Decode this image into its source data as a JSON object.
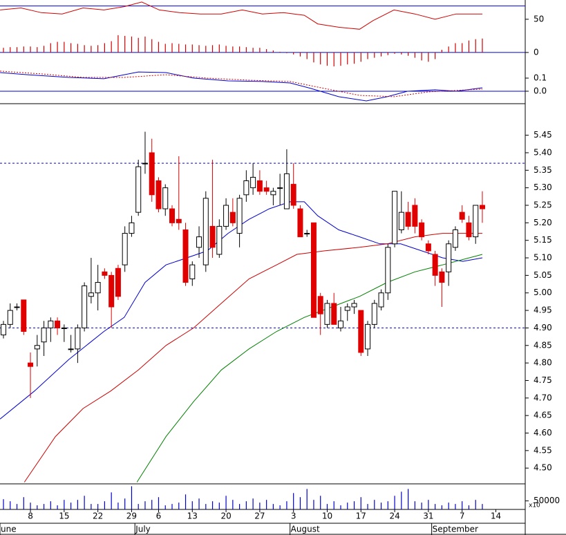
{
  "chart_data": [
    {
      "type": "oscillator",
      "ylim": [
        -23,
        79
      ],
      "yticks": [
        0,
        50
      ],
      "hlines": [
        70,
        0
      ],
      "hline_color": "#0000cc",
      "series": [
        {
          "color": "#d00000",
          "x": [
            -0.5,
            2.6,
            5.6,
            8.7,
            11.8,
            14.9,
            17.9,
            20.5,
            23.1,
            26.1,
            29.2,
            32.3,
            35.4,
            38.4,
            41.5,
            44.6,
            46.6,
            49.7,
            52.8,
            54.8,
            57.9,
            61,
            64,
            67.1,
            71
          ],
          "values": [
            64,
            67,
            60,
            58,
            67,
            64,
            69,
            76,
            64,
            60,
            58,
            58,
            64,
            58,
            60,
            56,
            43,
            38,
            35,
            48,
            64,
            58,
            50,
            58,
            58
          ]
        }
      ],
      "bars": {
        "color": "#d00000",
        "values": [
          7,
          8,
          8,
          9,
          9,
          8,
          10,
          14,
          16,
          16,
          14,
          13,
          11,
          10,
          11,
          14,
          17,
          26,
          25,
          24,
          22,
          24,
          20,
          16,
          13,
          14,
          13,
          12,
          12,
          11,
          10,
          11,
          12,
          10,
          9,
          9,
          8,
          7,
          7,
          5,
          3,
          1,
          -1,
          -3,
          -6,
          -10,
          -15,
          -18,
          -20,
          -21,
          -20,
          -18,
          -17,
          -14,
          -10,
          -8,
          -6,
          -4,
          -2,
          -3,
          -5,
          -8,
          -12,
          -14,
          -10,
          4,
          9,
          14,
          14,
          18,
          20,
          21,
          null,
          null
        ]
      }
    },
    {
      "type": "macd",
      "ylim": [
        -0.095,
        0.179
      ],
      "yticks": [
        {
          "value": 0.1,
          "label": "0.1"
        },
        {
          "value": 0,
          "label": "0.0"
        }
      ],
      "hlines": [
        0
      ],
      "hline_color": "#0000cc",
      "series": [
        {
          "color": "#0000cc",
          "dash": false,
          "x": [
            -0.5,
            3.6,
            9.7,
            14.9,
            20,
            24.1,
            28.2,
            33.3,
            38.4,
            42.5,
            45.6,
            49.7,
            53.8,
            56.9,
            59.9,
            64,
            67.1,
            71
          ],
          "values": [
            0.142,
            0.126,
            0.105,
            0.095,
            0.147,
            0.142,
            0.1,
            0.079,
            0.074,
            0.063,
            0.021,
            -0.042,
            -0.074,
            -0.042,
            0,
            0.011,
            0,
            0.026
          ]
        },
        {
          "color": "#cc0000",
          "dash": true,
          "x": [
            -0.5,
            5.6,
            11.8,
            17.9,
            24.1,
            30.2,
            36.4,
            42.5,
            47.6,
            52.8,
            57.9,
            63,
            71
          ],
          "values": [
            0.153,
            0.132,
            0.105,
            0.105,
            0.126,
            0.1,
            0.084,
            0.074,
            0.021,
            -0.032,
            -0.042,
            -0.005,
            0.016
          ]
        }
      ]
    },
    {
      "type": "candlestick",
      "ylim": [
        4.455,
        5.54
      ],
      "yticks": [
        {
          "value": 4.5,
          "label": "4.50"
        },
        4.55,
        {
          "value": 4.6,
          "label": "4.60"
        },
        4.65,
        {
          "value": 4.7,
          "label": "4.70"
        },
        4.75,
        {
          "value": 4.8,
          "label": "4.80"
        },
        4.85,
        {
          "value": 4.9,
          "label": "4.90"
        },
        4.95,
        {
          "value": 5,
          "label": "5.00"
        },
        5.05,
        {
          "value": 5.1,
          "label": "5.10"
        },
        5.15,
        {
          "value": 5.2,
          "label": "5.20"
        },
        5.25,
        {
          "value": 5.3,
          "label": "5.30"
        },
        5.35,
        {
          "value": 5.4,
          "label": "5.40"
        },
        5.45
      ],
      "hlines": [
        5.37,
        4.9
      ],
      "hline_color": "#0000cc",
      "hline_dashed": true,
      "up_color": "#ffffff",
      "down_color": "#e00000",
      "open": [
        4.88,
        4.91,
        4.96,
        4.98,
        4.8,
        4.84,
        4.86,
        4.9,
        4.92,
        4.9,
        4.84,
        4.84,
        4.9,
        4.99,
        5.0,
        5.06,
        5.05,
        5.07,
        5.08,
        5.17,
        5.23,
        5.37,
        5.4,
        5.32,
        5.24,
        5.24,
        5.21,
        5.18,
        5.04,
        5.13,
        5.08,
        5.19,
        5.11,
        5.19,
        5.23,
        5.17,
        5.28,
        5.3,
        5.32,
        5.3,
        5.28,
        5.3,
        5.24,
        5.31,
        5.24,
        5.17,
        5.2,
        4.99,
        4.91,
        4.97,
        4.9,
        4.95,
        4.96,
        4.95,
        4.84,
        4.91,
        4.96,
        5.0,
        5.14,
        5.18,
        5.23,
        5.25,
        5.2,
        5.14,
        5.11,
        5.06,
        5.06,
        5.13,
        5.23,
        5.2,
        5.16,
        5.25,
        null,
        null
      ],
      "high": [
        4.92,
        4.97,
        4.97,
        4.98,
        4.83,
        4.88,
        4.92,
        4.93,
        4.93,
        4.91,
        4.88,
        4.91,
        5.03,
        5.1,
        5.08,
        5.07,
        5.06,
        5.08,
        5.19,
        5.22,
        5.38,
        5.46,
        5.44,
        5.33,
        5.31,
        5.25,
        5.39,
        5.2,
        5.09,
        5.19,
        5.29,
        5.38,
        5.21,
        5.27,
        5.27,
        5.28,
        5.35,
        5.37,
        5.35,
        5.32,
        5.3,
        5.34,
        5.41,
        5.37,
        5.25,
        5.18,
        5.2,
        5.0,
        4.98,
        5.0,
        4.96,
        4.97,
        4.98,
        4.95,
        4.92,
        4.98,
        5.01,
        5.14,
        5.29,
        5.29,
        5.26,
        5.27,
        5.21,
        5.15,
        5.12,
        5.07,
        5.15,
        5.19,
        5.25,
        5.22,
        5.25,
        5.29,
        null,
        null
      ],
      "low": [
        4.87,
        4.9,
        4.95,
        4.88,
        4.7,
        4.79,
        4.82,
        4.86,
        4.88,
        4.86,
        4.83,
        4.8,
        4.89,
        4.97,
        4.95,
        5.04,
        4.9,
        4.98,
        5.06,
        5.16,
        5.22,
        5.34,
        5.26,
        5.23,
        5.22,
        5.19,
        5.18,
        5.02,
        5.02,
        5.1,
        5.06,
        5.1,
        5.1,
        5.18,
        5.19,
        5.13,
        5.26,
        5.28,
        5.28,
        5.28,
        5.25,
        5.25,
        5.24,
        5.24,
        5.16,
        5.16,
        4.93,
        4.88,
        4.9,
        4.91,
        4.89,
        4.92,
        4.94,
        4.82,
        4.82,
        4.9,
        4.95,
        4.98,
        5.13,
        5.17,
        5.18,
        5.17,
        5.15,
        5.11,
        5.02,
        4.96,
        5.02,
        5.12,
        5.2,
        5.15,
        5.14,
        5.2,
        null,
        null
      ],
      "close": [
        4.91,
        4.95,
        4.96,
        4.89,
        4.79,
        4.85,
        4.9,
        4.92,
        4.9,
        4.9,
        4.84,
        4.9,
        5.02,
        5.0,
        5.03,
        5.05,
        4.96,
        4.99,
        5.17,
        5.2,
        5.36,
        5.37,
        5.28,
        5.24,
        5.3,
        5.2,
        5.2,
        5.03,
        5.08,
        5.16,
        5.27,
        5.13,
        5.19,
        5.25,
        5.2,
        5.27,
        5.32,
        5.33,
        5.29,
        5.29,
        5.29,
        5.3,
        5.34,
        5.25,
        5.16,
        5.17,
        4.93,
        4.94,
        4.97,
        4.91,
        4.92,
        4.96,
        4.97,
        4.83,
        4.91,
        4.97,
        5.0,
        5.13,
        5.29,
        5.23,
        5.19,
        5.19,
        5.16,
        5.12,
        5.05,
        5.03,
        5.14,
        5.18,
        5.21,
        5.16,
        5.25,
        5.24,
        null,
        null
      ],
      "series": [
        {
          "color": "#0000cc",
          "x": [
            -0.5,
            4.6,
            9.7,
            14.9,
            17.9,
            21,
            24.1,
            27.2,
            30.2,
            33.3,
            36.4,
            39.4,
            42.5,
            44.6,
            46.6,
            49.7,
            52.8,
            55.8,
            58.9,
            62,
            65.1,
            68.1,
            71
          ],
          "values": [
            4.64,
            4.72,
            4.81,
            4.89,
            4.93,
            5.03,
            5.08,
            5.1,
            5.12,
            5.17,
            5.21,
            5.24,
            5.26,
            5.26,
            5.22,
            5.18,
            5.16,
            5.14,
            5.14,
            5.12,
            5.1,
            5.09,
            5.1
          ]
        },
        {
          "color": "#cc0000",
          "x": [
            3.1,
            7.7,
            11.8,
            15.9,
            20,
            24.1,
            28.2,
            32.3,
            36.4,
            40.5,
            43.5,
            47.6,
            52.8,
            56.9,
            61,
            65.1,
            71
          ],
          "values": [
            4.46,
            4.59,
            4.67,
            4.72,
            4.78,
            4.85,
            4.9,
            4.97,
            5.04,
            5.08,
            5.11,
            5.12,
            5.13,
            5.14,
            5.16,
            5.17,
            5.17
          ]
        },
        {
          "color": "#008000",
          "x": [
            19.8,
            24.1,
            28.2,
            32.3,
            36.4,
            40.5,
            44.6,
            48.7,
            52.8,
            56.9,
            61,
            65.1,
            71
          ],
          "values": [
            4.46,
            4.59,
            4.69,
            4.78,
            4.84,
            4.89,
            4.93,
            4.96,
            4.99,
            5.03,
            5.06,
            5.08,
            5.11
          ]
        }
      ]
    },
    {
      "type": "volume",
      "ylim": [
        0,
        150000
      ],
      "yticks": [
        50000
      ],
      "multiplier_label": "x10",
      "color": "#0000cc",
      "values": [
        60000,
        48000,
        32000,
        72000,
        40000,
        24000,
        32000,
        48000,
        24000,
        56000,
        40000,
        56000,
        80000,
        32000,
        32000,
        48000,
        100000,
        40000,
        64000,
        136000,
        32000,
        48000,
        56000,
        72000,
        24000,
        32000,
        40000,
        88000,
        48000,
        64000,
        32000,
        48000,
        40000,
        80000,
        56000,
        32000,
        48000,
        64000,
        40000,
        56000,
        32000,
        24000,
        48000,
        96000,
        72000,
        120000,
        56000,
        80000,
        32000,
        48000,
        24000,
        40000,
        48000,
        72000,
        32000,
        56000,
        40000,
        48000,
        80000,
        104000,
        120000,
        48000,
        40000,
        56000,
        32000,
        24000,
        40000,
        32000,
        48000,
        24000,
        56000,
        32000,
        null,
        null
      ],
      "categories": [
        null,
        null,
        null,
        null,
        "8",
        null,
        null,
        null,
        null,
        "15",
        null,
        null,
        null,
        null,
        "22",
        null,
        null,
        null,
        null,
        "29",
        null,
        null,
        null,
        "6",
        null,
        null,
        null,
        null,
        "13",
        null,
        null,
        null,
        null,
        "20",
        null,
        null,
        null,
        null,
        "27",
        null,
        null,
        null,
        null,
        "3",
        null,
        null,
        null,
        null,
        "10",
        null,
        null,
        null,
        null,
        "17",
        null,
        null,
        null,
        null,
        "24",
        null,
        null,
        null,
        null,
        "31",
        null,
        null,
        null,
        null,
        "7",
        null,
        null,
        null,
        null,
        "14"
      ],
      "months": [
        {
          "index": 0,
          "label": "une"
        },
        {
          "index": 20,
          "label": "July"
        },
        {
          "index": 43,
          "label": "August"
        },
        {
          "index": 64,
          "label": "September"
        }
      ]
    }
  ]
}
